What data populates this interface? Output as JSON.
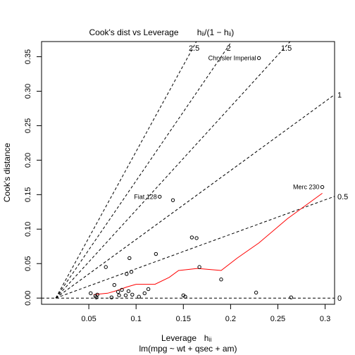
{
  "chart_data": {
    "type": "scatter",
    "title_text": "Cook's dist vs Leverage",
    "title_math": "hᵢᵢ/(1 − hᵢᵢ)",
    "xlabel": "Leverage",
    "xlabel_math": "hᵢᵢ",
    "subtitle": "lm(mpg ~ wt + qsec + am)",
    "ylabel": "Cook's distance",
    "xlim": [
      0.0,
      0.31
    ],
    "ylim": [
      -0.009,
      0.372
    ],
    "xticks": [
      {
        "value": 0.05,
        "label": "0.05"
      },
      {
        "value": 0.1,
        "label": "0.1"
      },
      {
        "value": 0.15,
        "label": "0.15"
      },
      {
        "value": 0.2,
        "label": "0.2"
      },
      {
        "value": 0.25,
        "label": "0.25"
      },
      {
        "value": 0.3,
        "label": "0.3"
      }
    ],
    "yticks": [
      {
        "value": 0.0,
        "label": "0.00"
      },
      {
        "value": 0.05,
        "label": "0.05"
      },
      {
        "value": 0.1,
        "label": "0.10"
      },
      {
        "value": 0.15,
        "label": "0.15"
      },
      {
        "value": 0.2,
        "label": "0.20"
      },
      {
        "value": 0.25,
        "label": "0.25"
      },
      {
        "value": 0.3,
        "label": "0.30"
      },
      {
        "value": 0.35,
        "label": "0.35"
      }
    ],
    "contours": [
      {
        "label": "0.5",
        "slope": 0.5
      },
      {
        "label": "1",
        "slope": 1
      },
      {
        "label": "1.5",
        "slope": 1.5
      },
      {
        "label": "2",
        "slope": 2
      },
      {
        "label": "2.5",
        "slope": 2.5
      }
    ],
    "contour_origin": 0.015,
    "zero_label": "0",
    "points": [
      [
        0.052,
        0.007
      ],
      [
        0.057,
        0.003
      ],
      [
        0.058,
        0.001
      ],
      [
        0.059,
        0.005
      ],
      [
        0.068,
        0.045
      ],
      [
        0.074,
        0.001
      ],
      [
        0.077,
        0.019
      ],
      [
        0.081,
        0.009
      ],
      [
        0.082,
        0.004
      ],
      [
        0.085,
        0.012
      ],
      [
        0.089,
        0.004
      ],
      [
        0.09,
        0.035
      ],
      [
        0.092,
        0.01
      ],
      [
        0.093,
        0.058
      ],
      [
        0.095,
        0.038
      ],
      [
        0.096,
        0.005
      ],
      [
        0.103,
        0.002
      ],
      [
        0.109,
        0.007
      ],
      [
        0.113,
        0.013
      ],
      [
        0.121,
        0.064
      ],
      [
        0.125,
        0.147
      ],
      [
        0.139,
        0.142
      ],
      [
        0.15,
        0.004
      ],
      [
        0.152,
        0.002
      ],
      [
        0.159,
        0.088
      ],
      [
        0.164,
        0.087
      ],
      [
        0.167,
        0.045
      ],
      [
        0.19,
        0.027
      ],
      [
        0.227,
        0.008
      ],
      [
        0.23,
        0.348
      ],
      [
        0.264,
        0.001
      ],
      [
        0.297,
        0.161
      ]
    ],
    "labeled_points": [
      {
        "label": "Chrysler Imperial",
        "x": 0.23,
        "y": 0.348
      },
      {
        "label": "Fiat 128",
        "x": 0.125,
        "y": 0.147
      },
      {
        "label": "Merc 230",
        "x": 0.297,
        "y": 0.161
      }
    ],
    "smoother": [
      [
        0.055,
        0.005
      ],
      [
        0.07,
        0.007
      ],
      [
        0.08,
        0.011
      ],
      [
        0.09,
        0.016
      ],
      [
        0.1,
        0.02
      ],
      [
        0.12,
        0.02
      ],
      [
        0.135,
        0.03
      ],
      [
        0.145,
        0.04
      ],
      [
        0.165,
        0.043
      ],
      [
        0.19,
        0.04
      ],
      [
        0.207,
        0.058
      ],
      [
        0.23,
        0.08
      ],
      [
        0.26,
        0.115
      ],
      [
        0.297,
        0.152
      ]
    ],
    "colors": {
      "points": "#000000",
      "smoother": "#ff0000",
      "contours": "#000000"
    }
  }
}
